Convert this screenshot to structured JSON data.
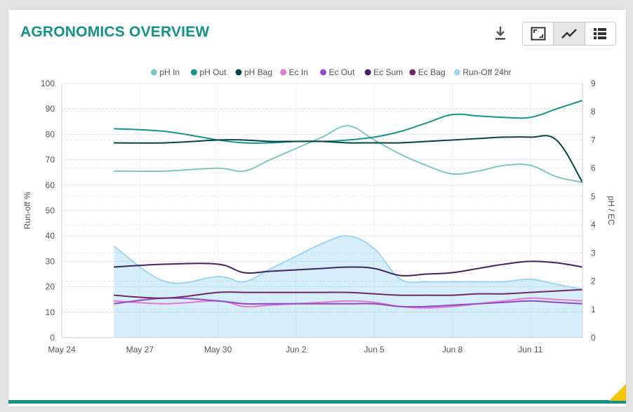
{
  "header": {
    "title": "AGRONOMICS OVERVIEW",
    "download_icon": "download-icon",
    "buttons": [
      {
        "name": "expand",
        "icon": "expand-icon"
      },
      {
        "name": "chart-view",
        "icon": "line-chart-icon",
        "active": true
      },
      {
        "name": "table-view",
        "icon": "list-icon"
      }
    ]
  },
  "colors": {
    "accent": "#139287",
    "corner": "#f5c400"
  },
  "chart_data": {
    "type": "line",
    "y_left": {
      "label": "Run-off %",
      "min": 0,
      "max": 100,
      "ticks": [
        0,
        10,
        20,
        30,
        40,
        50,
        60,
        70,
        80,
        90,
        100
      ]
    },
    "y_right": {
      "label": "pH / EC",
      "min": 0,
      "max": 9,
      "ticks": [
        0,
        1,
        2,
        3,
        4,
        5,
        6,
        7,
        8,
        9
      ]
    },
    "x_axis": {
      "start": "May 24",
      "end": "Jun 13",
      "tick_labels": [
        "May 24",
        "May 27",
        "May 30",
        "Jun 2",
        "Jun 5",
        "Jun 8",
        "Jun 11"
      ]
    },
    "x": [
      "May 26",
      "May 28",
      "May 30",
      "May 31",
      "Jun 1",
      "Jun 2",
      "Jun 3",
      "Jun 4",
      "Jun 5",
      "Jun 6",
      "Jun 7",
      "Jun 8",
      "Jun 9",
      "Jun 10",
      "Jun 11",
      "Jun 12",
      "Jun 13"
    ],
    "grid": true,
    "legend_position": "top",
    "series": [
      {
        "name": "pH In",
        "axis": "right",
        "type": "line",
        "color": "#7ec8c0",
        "values": [
          5.9,
          5.9,
          6.0,
          5.9,
          6.3,
          6.7,
          7.1,
          7.5,
          7.0,
          6.5,
          6.1,
          5.8,
          5.9,
          6.1,
          6.1,
          5.7,
          5.5
        ]
      },
      {
        "name": "pH Out",
        "axis": "right",
        "type": "line",
        "color": "#15958a",
        "values": [
          7.4,
          7.3,
          7.0,
          6.9,
          6.9,
          6.95,
          6.95,
          7.0,
          7.1,
          7.3,
          7.6,
          7.9,
          7.85,
          7.8,
          7.8,
          8.1,
          8.4
        ]
      },
      {
        "name": "pH Bag",
        "axis": "right",
        "type": "line",
        "color": "#06453f",
        "values": [
          6.9,
          6.9,
          7.0,
          7.0,
          6.95,
          6.95,
          6.95,
          6.9,
          6.9,
          6.9,
          6.95,
          7.0,
          7.05,
          7.1,
          7.1,
          7.0,
          5.5
        ]
      },
      {
        "name": "Ec In",
        "axis": "right",
        "type": "line",
        "color": "#e47ad0",
        "values": [
          1.3,
          1.2,
          1.3,
          1.1,
          1.15,
          1.2,
          1.25,
          1.3,
          1.25,
          1.1,
          1.05,
          1.1,
          1.2,
          1.3,
          1.4,
          1.35,
          1.3
        ]
      },
      {
        "name": "Ec Out",
        "axis": "right",
        "type": "line",
        "color": "#9148cf",
        "values": [
          1.2,
          1.4,
          1.3,
          1.2,
          1.2,
          1.2,
          1.2,
          1.2,
          1.2,
          1.1,
          1.1,
          1.15,
          1.2,
          1.25,
          1.3,
          1.25,
          1.2
        ]
      },
      {
        "name": "Ec Sum",
        "axis": "right",
        "type": "line",
        "color": "#3f2466",
        "values": [
          2.5,
          2.6,
          2.6,
          2.3,
          2.35,
          2.4,
          2.45,
          2.5,
          2.45,
          2.2,
          2.25,
          2.3,
          2.45,
          2.6,
          2.7,
          2.65,
          2.5
        ]
      },
      {
        "name": "Ec Bag",
        "axis": "right",
        "type": "line",
        "color": "#6e2a60",
        "values": [
          1.5,
          1.4,
          1.6,
          1.6,
          1.6,
          1.6,
          1.6,
          1.6,
          1.55,
          1.5,
          1.5,
          1.5,
          1.55,
          1.55,
          1.6,
          1.65,
          1.7
        ]
      },
      {
        "name": "Run-Off 24hr",
        "axis": "left",
        "type": "area",
        "color": "#9ed6f2",
        "values": [
          36,
          22,
          24,
          22,
          27,
          32,
          37,
          40,
          35,
          23,
          22,
          22,
          22,
          22,
          23,
          21,
          19
        ]
      }
    ]
  }
}
